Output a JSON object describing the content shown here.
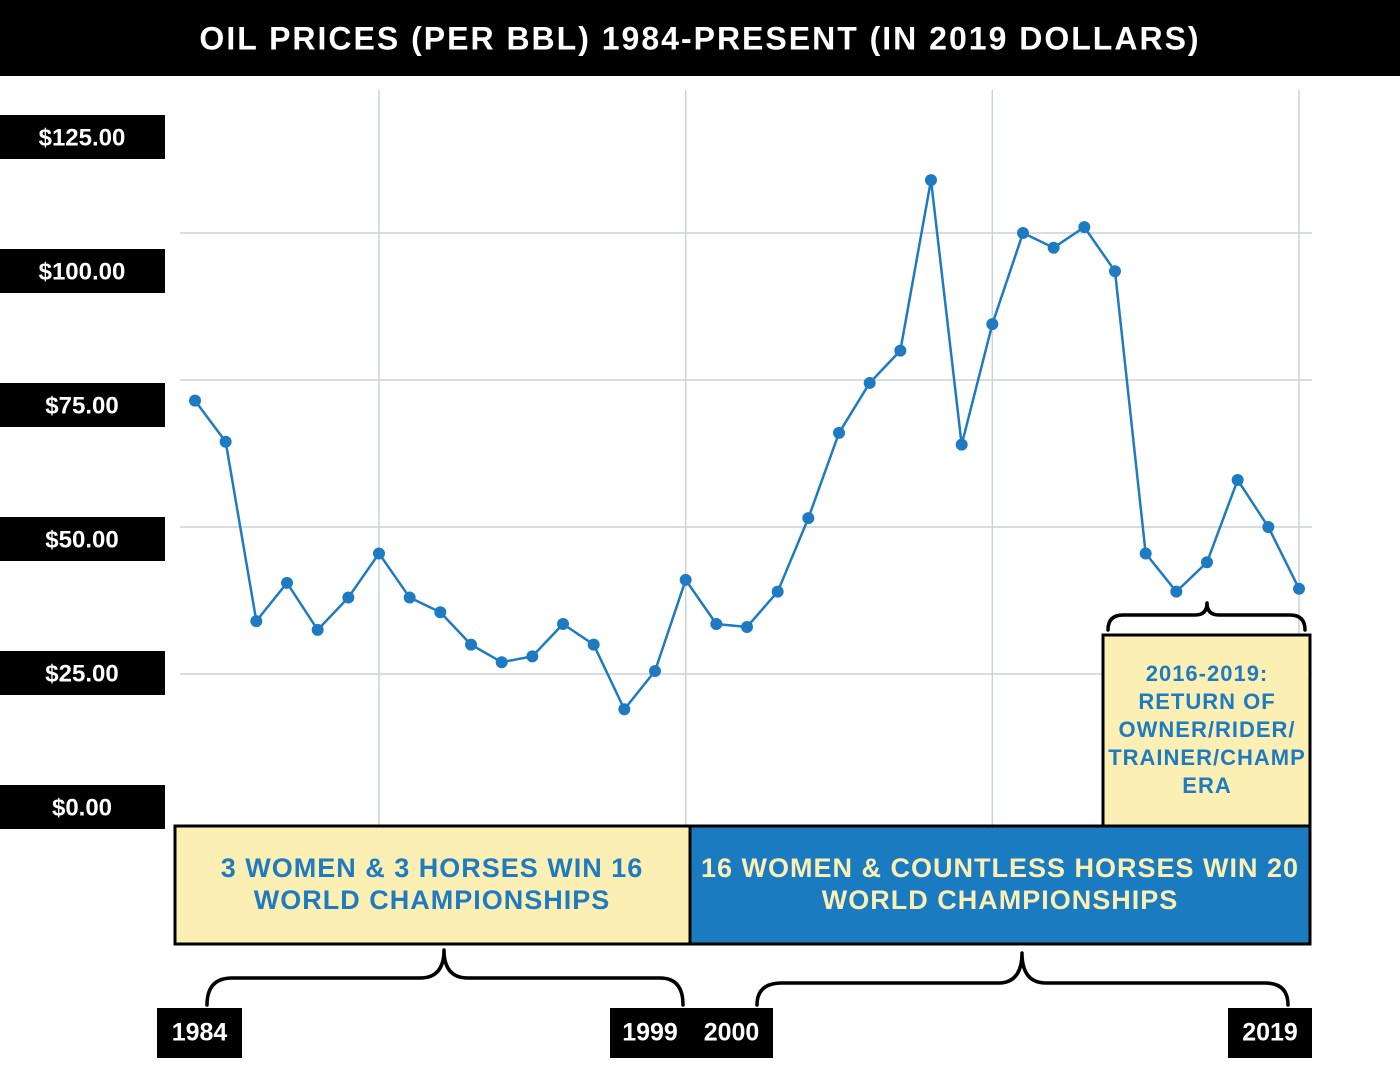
{
  "chart_data": {
    "type": "line",
    "title": "OIL PRICES (PER BBL) 1984-PRESENT (IN 2019 DOLLARS)",
    "x": [
      1984,
      1985,
      1986,
      1987,
      1988,
      1989,
      1990,
      1991,
      1992,
      1993,
      1994,
      1995,
      1996,
      1997,
      1998,
      1999,
      2000,
      2001,
      2002,
      2003,
      2004,
      2005,
      2006,
      2007,
      2008,
      2009,
      2010,
      2011,
      2012,
      2013,
      2014,
      2015,
      2016,
      2017,
      2018,
      2019,
      2020
    ],
    "values": [
      71.5,
      64.5,
      34,
      40.5,
      32.5,
      38,
      45.5,
      38,
      35.5,
      30,
      27,
      28,
      33.5,
      30,
      19,
      25.5,
      41,
      33.5,
      33,
      39,
      51.5,
      66,
      74.5,
      80,
      109,
      64,
      84.5,
      100,
      97.5,
      101,
      93.5,
      45.5,
      39,
      44,
      58,
      50,
      39.5
    ],
    "color": "#1f7bc1",
    "xlim": [
      1984,
      2020
    ],
    "xticks": [
      1990,
      2000,
      2010,
      2020
    ],
    "ylim": [
      0,
      125
    ],
    "yticks": [
      {
        "value": 0,
        "label": "$0.00"
      },
      {
        "value": 25,
        "label": "$25.00"
      },
      {
        "value": 50,
        "label": "$50.00"
      },
      {
        "value": 75,
        "label": "$75.00"
      },
      {
        "value": 100,
        "label": "$100.00"
      },
      {
        "value": 125,
        "label": "$125.00"
      }
    ],
    "grid": true,
    "annotations": [
      {
        "lines": [
          "3 WOMEN & 3 HORSES WIN 16",
          "WORLD CHAMPIONSHIPS"
        ]
      },
      {
        "lines": [
          "16 WOMEN & COUNTLESS HORSES WIN 20",
          "WORLD CHAMPIONSHIPS"
        ]
      },
      {
        "lines": [
          "2016-2019:",
          "RETURN OF",
          "OWNER/RIDER/",
          "TRAINER/CHAMP",
          "ERA"
        ]
      }
    ],
    "period_labels": [
      "1984",
      "1999",
      "2000",
      "2019"
    ]
  }
}
